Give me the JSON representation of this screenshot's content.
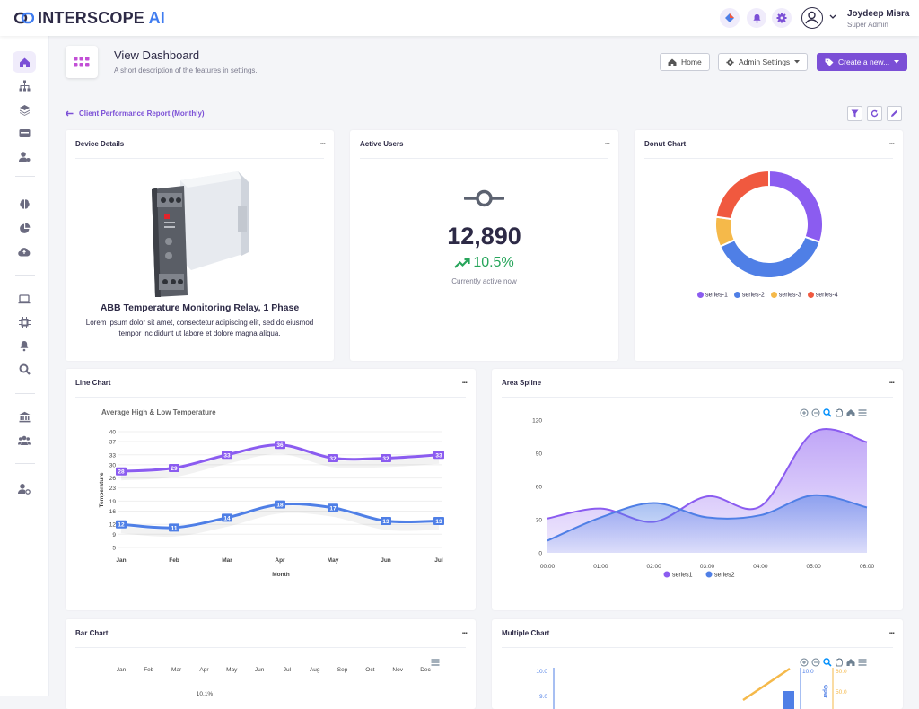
{
  "brand": {
    "name_a": "INTERSCOPE",
    "name_b": " AI"
  },
  "user": {
    "name": "Joydeep Misra",
    "role": "Super Admin"
  },
  "header": {
    "title": "View Dashboard",
    "description": "A short description of the features in settings.",
    "home_label": "Home",
    "admin_label": "Admin Settings",
    "create_label": "Create a new..."
  },
  "breadcrumb": {
    "label": "Client Performance Report (Monthly)"
  },
  "device_card": {
    "title": "Device Details",
    "menu": "...",
    "name": "ABB Temperature Monitoring Relay, 1 Phase",
    "description": "Lorem ipsum dolor sit amet, consectetur adipiscing elit, sed do eiusmod tempor incididunt ut labore et dolore magna aliqua."
  },
  "users_card": {
    "title": "Active Users",
    "menu": "...",
    "value": "12,890",
    "change": "10.5%",
    "caption": "Currently active now"
  },
  "donut_card": {
    "title": "Donut Chart",
    "menu": "..."
  },
  "line_card": {
    "title": "Line Chart",
    "menu": "..."
  },
  "area_card": {
    "title": "Area Spline",
    "menu": "..."
  },
  "bar_card": {
    "title": "Bar Chart",
    "menu": "..."
  },
  "multi_card": {
    "title": "Multiple Chart",
    "menu": "..."
  },
  "colors": {
    "accent": "#7b4fd6",
    "blue": "#4f7fe6",
    "green": "#27a55b"
  },
  "chart_data": [
    {
      "type": "pie",
      "name": "donut",
      "labels": [
        "series-1",
        "series-2",
        "series-3",
        "series-4"
      ],
      "values": [
        44,
        55,
        13,
        33
      ],
      "colors": [
        "#8b5cf0",
        "#4f7fe6",
        "#f5b94a",
        "#f0593f"
      ]
    },
    {
      "type": "line",
      "name": "line",
      "title": "Average High & Low Temperature",
      "xlabel": "Month",
      "ylabel": "Temperature",
      "categories": [
        "Jan",
        "Feb",
        "Mar",
        "Apr",
        "May",
        "Jun",
        "Jul"
      ],
      "yticks": [
        "5",
        "9",
        "12",
        "16",
        "19",
        "23",
        "26",
        "30",
        "33",
        "37",
        "40"
      ],
      "ylim": [
        5,
        40
      ],
      "series": [
        {
          "name": "High",
          "values": [
            28,
            29,
            33,
            36,
            32,
            32,
            33
          ],
          "color": "#8b5cf0"
        },
        {
          "name": "Low",
          "values": [
            12,
            11,
            14,
            18,
            17,
            13,
            13
          ],
          "color": "#4f7fe6"
        }
      ]
    },
    {
      "type": "area",
      "name": "area",
      "categories": [
        "00:00",
        "01:00",
        "02:00",
        "03:00",
        "04:00",
        "05:00",
        "06:00"
      ],
      "yticks": [
        "0",
        "30",
        "60",
        "90",
        "120"
      ],
      "ylim": [
        0,
        120
      ],
      "series": [
        {
          "name": "series1",
          "values": [
            31,
            40,
            28,
            51,
            42,
            109,
            100
          ],
          "color": "#8b5cf0"
        },
        {
          "name": "series2",
          "values": [
            11,
            32,
            45,
            32,
            34,
            52,
            41
          ],
          "color": "#4f7fe6"
        }
      ]
    },
    {
      "type": "bar",
      "name": "bar",
      "categories": [
        "Jan",
        "Feb",
        "Mar",
        "Apr",
        "May",
        "Jun",
        "Jul",
        "Aug",
        "Sep",
        "Oct",
        "Nov",
        "Dec"
      ],
      "visible_label": "10.1%"
    },
    {
      "type": "line",
      "name": "multiple",
      "left_axis_top": "10.0",
      "left_axis_next": "9.0",
      "right_axis_a": "10.0",
      "right_axis_b_top": "60.0",
      "right_axis_b_next": "50.0",
      "right_axis_title": "Oper"
    }
  ]
}
